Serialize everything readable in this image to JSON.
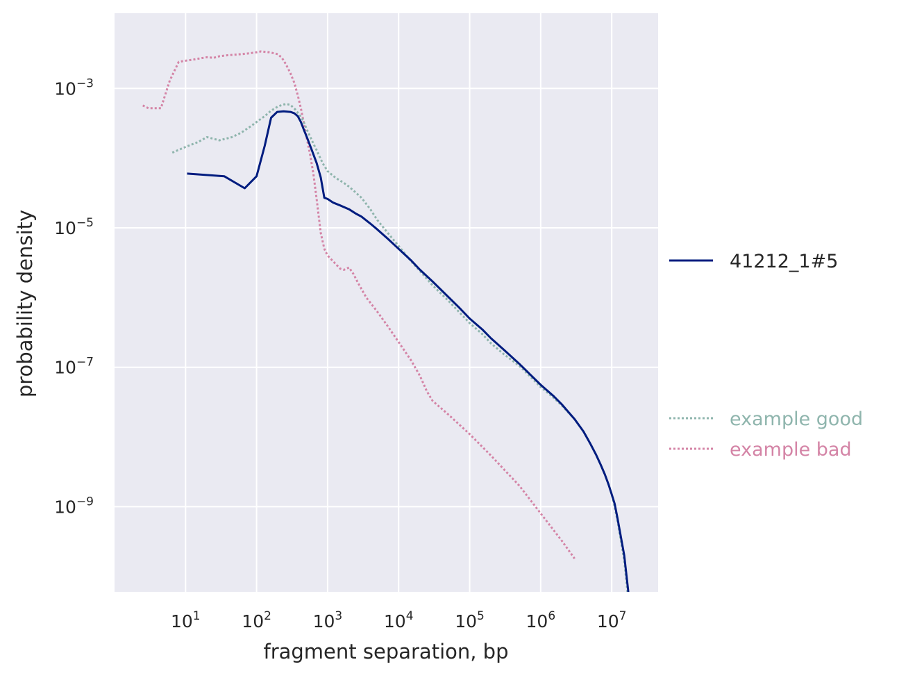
{
  "chart_data": {
    "type": "line",
    "title": "",
    "xlabel": "fragment separation, bp",
    "ylabel": "probability density",
    "xscale": "log",
    "yscale": "log",
    "xlim": [
      1.0,
      45000000
    ],
    "ylim": [
      6e-11,
      0.012
    ],
    "x_ticks": [
      {
        "value": 10,
        "base": "10",
        "exp": "1"
      },
      {
        "value": 100,
        "base": "10",
        "exp": "2"
      },
      {
        "value": 1000,
        "base": "10",
        "exp": "3"
      },
      {
        "value": 10000,
        "base": "10",
        "exp": "4"
      },
      {
        "value": 100000,
        "base": "10",
        "exp": "5"
      },
      {
        "value": 1000000,
        "base": "10",
        "exp": "6"
      },
      {
        "value": 10000000,
        "base": "10",
        "exp": "7"
      }
    ],
    "y_ticks": [
      {
        "value": 0.001,
        "base": "10",
        "exp": "−3"
      },
      {
        "value": 1e-05,
        "base": "10",
        "exp": "−5"
      },
      {
        "value": 1e-07,
        "base": "10",
        "exp": "−7"
      },
      {
        "value": 1e-09,
        "base": "10",
        "exp": "−9"
      }
    ],
    "grid": true,
    "legend_placement": "right, outside plot",
    "colors": {
      "background": "#eaeaf2",
      "grid": "#ffffff",
      "sample": "#001c7f",
      "good": "#8fb5ad",
      "bad": "#d484a6",
      "text": "#262626"
    },
    "series": [
      {
        "name": "41212_1#5",
        "style": "solid",
        "color": "#001c7f",
        "x": [
          10.5,
          35,
          68,
          100,
          130,
          160,
          195,
          240,
          300,
          340,
          380,
          420,
          460,
          520,
          600,
          700,
          800,
          900,
          1000,
          1200,
          1500,
          2000,
          2500,
          3000,
          4000,
          5000,
          7000,
          10000,
          15000,
          20000,
          30000,
          50000,
          70000,
          100000,
          150000,
          200000,
          300000,
          500000,
          700000,
          1000000,
          1500000,
          2000000,
          3000000,
          4000000,
          5000000,
          6000000,
          7000000,
          8000000,
          9000000,
          10000000,
          11000000,
          12000000,
          13000000,
          15000000,
          17000000,
          19000000
        ],
        "y": [
          6e-05,
          5.5e-05,
          3.7e-05,
          5.5e-05,
          0.00015,
          0.00038,
          0.00046,
          0.00047,
          0.00046,
          0.00044,
          0.0004,
          0.00033,
          0.00026,
          0.00019,
          0.00013,
          8.5e-05,
          5.3e-05,
          2.7e-05,
          2.6e-05,
          2.3e-05,
          2.1e-05,
          1.85e-05,
          1.6e-05,
          1.45e-05,
          1.15e-05,
          9.5e-06,
          7e-06,
          5e-06,
          3.4e-06,
          2.5e-06,
          1.7e-06,
          1.02e-06,
          7.3e-07,
          5e-07,
          3.5e-07,
          2.6e-07,
          1.8e-07,
          1.12e-07,
          8e-08,
          5.6e-08,
          3.9e-08,
          2.9e-08,
          1.8e-08,
          1.2e-08,
          8e-09,
          5.6e-09,
          4e-09,
          2.9e-09,
          2.1e-09,
          1.5e-09,
          1.1e-09,
          7e-10,
          4.5e-10,
          2e-10,
          6.5e-11,
          2e-11
        ]
      },
      {
        "name": "example good",
        "style": "dotted",
        "color": "#8fb5ad",
        "x": [
          6.5,
          10,
          15,
          20,
          30,
          45,
          60,
          80,
          100,
          130,
          160,
          200,
          230,
          260,
          300,
          350,
          400,
          450,
          500,
          600,
          700,
          850,
          1000,
          1300,
          1700,
          2000,
          2500,
          3000,
          4000,
          5000,
          7000,
          10000,
          15000,
          20000,
          30000,
          50000,
          70000,
          100000,
          150000,
          200000,
          300000,
          500000,
          700000,
          1000000,
          1500000,
          2000000,
          3000000,
          4000000,
          5000000,
          6000000,
          7000000,
          8000000,
          9000000,
          10000000,
          11000000,
          12000000,
          13000000,
          15000000,
          17000000
        ],
        "y": [
          0.00012,
          0.000145,
          0.00017,
          0.0002,
          0.00018,
          0.0002,
          0.00023,
          0.00028,
          0.00033,
          0.0004,
          0.00048,
          0.00055,
          0.00058,
          0.0006,
          0.00058,
          0.0005,
          0.00042,
          0.00035,
          0.00027,
          0.00018,
          0.00013,
          8.5e-05,
          6.5e-05,
          5.2e-05,
          4.4e-05,
          3.9e-05,
          3.2e-05,
          2.7e-05,
          1.85e-05,
          1.3e-05,
          8.5e-06,
          5.5e-06,
          3.3e-06,
          2.4e-06,
          1.5e-06,
          9e-07,
          6.3e-07,
          4.3e-07,
          3e-07,
          2.2e-07,
          1.55e-07,
          1.05e-07,
          7.5e-08,
          5.2e-08,
          3.7e-08,
          2.8e-08,
          1.8e-08,
          1.2e-08,
          8e-09,
          5.6e-09,
          4e-09,
          2.9e-09,
          2.1e-09,
          1.5e-09,
          1e-09,
          6.5e-10,
          4e-10,
          1.7e-10,
          5e-11
        ]
      },
      {
        "name": "example bad",
        "style": "dotted",
        "color": "#d484a6",
        "x": [
          2.5,
          3,
          3.7,
          4.5,
          6,
          8,
          10,
          13,
          16,
          20,
          25,
          30,
          40,
          50,
          60,
          70,
          80,
          90,
          100,
          115,
          130,
          150,
          175,
          200,
          230,
          260,
          300,
          340,
          380,
          420,
          460,
          500,
          560,
          630,
          700,
          800,
          900,
          1000,
          1200,
          1500,
          1700,
          2000,
          2300,
          2700,
          3500,
          5000,
          7000,
          10000,
          15000,
          20000,
          25000,
          30000,
          50000,
          100000,
          200000,
          500000,
          1000000,
          2000000,
          3000000
        ],
        "y": [
          0.00057,
          0.00052,
          0.00052,
          0.00052,
          0.0013,
          0.0024,
          0.0025,
          0.0026,
          0.0027,
          0.0028,
          0.00275,
          0.0029,
          0.003,
          0.00305,
          0.0031,
          0.00315,
          0.0032,
          0.00325,
          0.0033,
          0.0034,
          0.00335,
          0.0033,
          0.0032,
          0.0031,
          0.0027,
          0.0022,
          0.00165,
          0.0012,
          0.0008,
          0.00052,
          0.00033,
          0.00021,
          0.00012,
          6e-05,
          2.6e-05,
          8.5e-06,
          5e-06,
          4e-06,
          3.3e-06,
          2.6e-06,
          2.5e-06,
          2.7e-06,
          2.2e-06,
          1.6e-06,
          1e-06,
          6.3e-07,
          3.9e-07,
          2.3e-07,
          1.25e-07,
          7.5e-08,
          4.5e-08,
          3.3e-08,
          2.1e-08,
          1.1e-08,
          5.4e-09,
          2e-09,
          8e-10,
          3.2e-10,
          1.8e-10
        ]
      }
    ]
  }
}
